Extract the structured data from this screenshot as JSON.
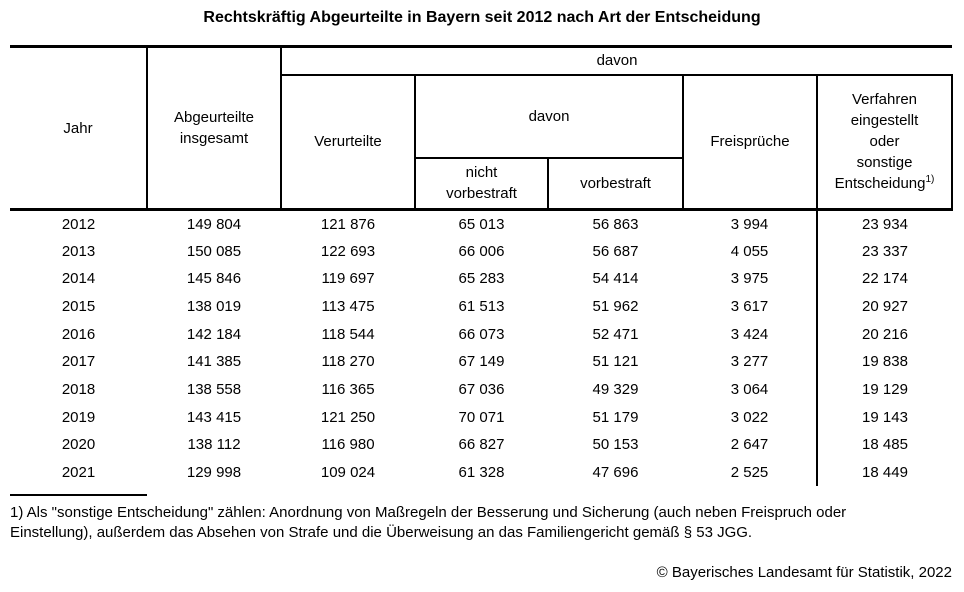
{
  "title": "Rechtskräftig Abgeurteilte in Bayern seit 2012 nach Art der Entscheidung",
  "table": {
    "headers": {
      "jahr": "Jahr",
      "abgeurteilte_insgesamt": "Abgeurteilte\ninsgesamt",
      "davon": "davon",
      "verurteilte": "Verurteilte",
      "davon2": "davon",
      "nicht_vorbestraft": "nicht\nvorbestraft",
      "vorbestraft": "vorbestraft",
      "freisprueche": "Freisprüche",
      "verfahren": "Verfahren\neingestellt\noder\nsonstige\nEntscheidung",
      "verfahren_marker": "1)"
    },
    "rows": [
      [
        "2012",
        "149 804",
        "121 876",
        "65 013",
        "56 863",
        "3 994",
        "23 934"
      ],
      [
        "2013",
        "150 085",
        "122 693",
        "66 006",
        "56 687",
        "4 055",
        "23 337"
      ],
      [
        "2014",
        "145 846",
        "119 697",
        "65 283",
        "54 414",
        "3 975",
        "22 174"
      ],
      [
        "2015",
        "138 019",
        "113 475",
        "61 513",
        "51 962",
        "3 617",
        "20 927"
      ],
      [
        "2016",
        "142 184",
        "118 544",
        "66 073",
        "52 471",
        "3 424",
        "20 216"
      ],
      [
        "2017",
        "141 385",
        "118 270",
        "67 149",
        "51 121",
        "3 277",
        "19 838"
      ],
      [
        "2018",
        "138 558",
        "116 365",
        "67 036",
        "49 329",
        "3 064",
        "19 129"
      ],
      [
        "2019",
        "143 415",
        "121 250",
        "70 071",
        "51 179",
        "3 022",
        "19 143"
      ],
      [
        "2020",
        "138 112",
        "116 980",
        "66 827",
        "50 153",
        "2 647",
        "18 485"
      ],
      [
        "2021",
        "129 998",
        "109 024",
        "61 328",
        "47 696",
        "2 525",
        "18 449"
      ]
    ]
  },
  "chart_data": {
    "type": "table",
    "title": "Rechtskräftig Abgeurteilte in Bayern seit 2012 nach Art der Entscheidung",
    "columns": [
      "Jahr",
      "Abgeurteilte insgesamt",
      "Verurteilte",
      "nicht vorbestraft",
      "vorbestraft",
      "Freisprüche",
      "Verfahren eingestellt oder sonstige Entscheidung 1)"
    ],
    "rows": [
      [
        2012,
        149804,
        121876,
        65013,
        56863,
        3994,
        23934
      ],
      [
        2013,
        150085,
        122693,
        66006,
        56687,
        4055,
        23337
      ],
      [
        2014,
        145846,
        119697,
        65283,
        54414,
        3975,
        22174
      ],
      [
        2015,
        138019,
        113475,
        61513,
        51962,
        3617,
        20927
      ],
      [
        2016,
        142184,
        118544,
        66073,
        52471,
        3424,
        20216
      ],
      [
        2017,
        141385,
        118270,
        67149,
        51121,
        3277,
        19838
      ],
      [
        2018,
        138558,
        116365,
        67036,
        49329,
        3064,
        19129
      ],
      [
        2019,
        143415,
        121250,
        70071,
        51179,
        3022,
        19143
      ],
      [
        2020,
        138112,
        116980,
        66827,
        50153,
        2647,
        18485
      ],
      [
        2021,
        129998,
        109024,
        61328,
        47696,
        2525,
        18449
      ]
    ]
  },
  "footnote": "1) Als \"sonstige Entscheidung\" zählen: Anordnung von Maßregeln der Besserung und Sicherung (auch neben Freispruch oder\nEinstellung), außerdem das Absehen von Strafe und die Überweisung an das Familiengericht gemäß § 53 JGG.",
  "copyright": "© Bayerisches Landesamt für Statistik, 2022",
  "colors": {
    "background": "#ffffff",
    "text": "#000000",
    "rule": "#000000"
  }
}
